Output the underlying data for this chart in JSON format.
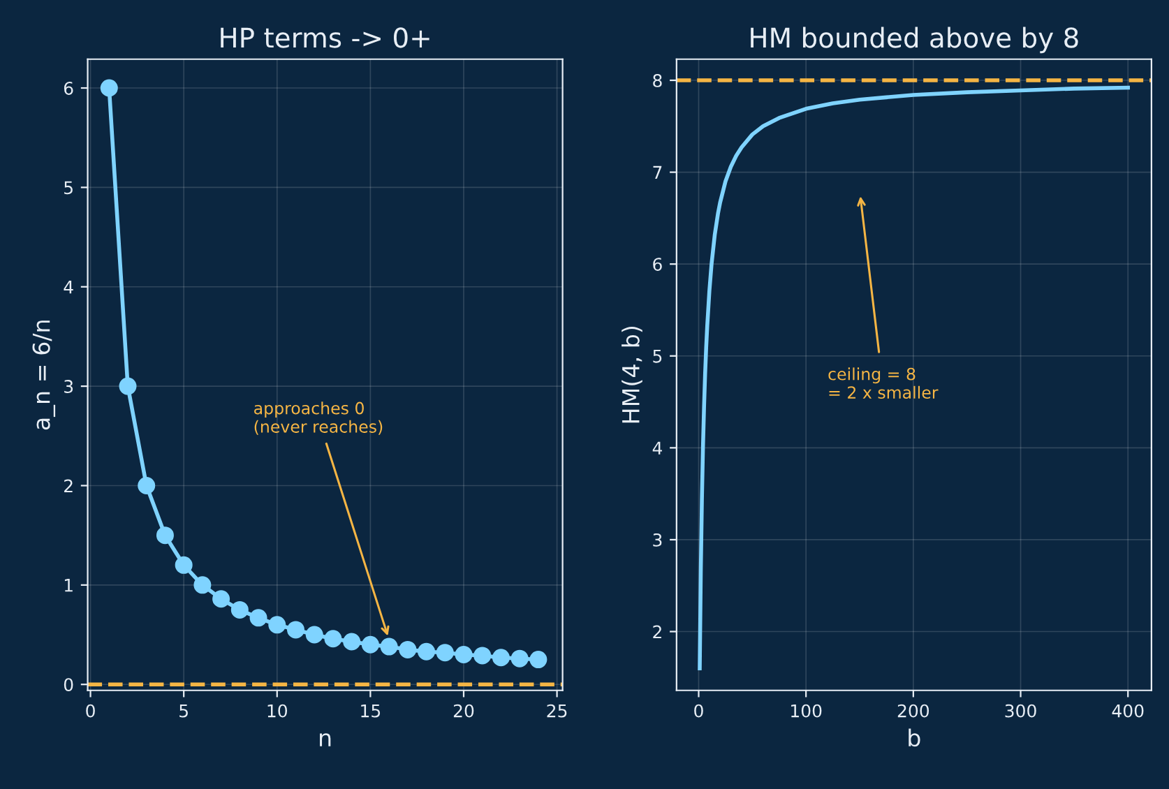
{
  "chart_data": [
    {
      "type": "line",
      "title": "HP terms -> 0+",
      "xlabel": "n",
      "ylabel": "a_n = 6/n",
      "x": [
        1,
        2,
        3,
        4,
        5,
        6,
        7,
        8,
        9,
        10,
        11,
        12,
        13,
        14,
        15,
        16,
        17,
        18,
        19,
        20,
        21,
        22,
        23,
        24
      ],
      "series": [
        {
          "color": "#7fd3ff",
          "values": [
            6,
            3,
            2,
            1.5,
            1.2,
            1,
            0.86,
            0.75,
            0.67,
            0.6,
            0.55,
            0.5,
            0.46,
            0.43,
            0.4,
            0.38,
            0.35,
            0.33,
            0.32,
            0.3,
            0.29,
            0.27,
            0.26,
            0.25
          ]
        }
      ],
      "marker": "circle",
      "line_style": "solid",
      "xlim": [
        -0.15,
        25.3
      ],
      "ylim": [
        -0.06,
        6.29
      ],
      "xticks": [
        0,
        5,
        10,
        15,
        20,
        25
      ],
      "yticks": [
        0,
        1,
        2,
        3,
        4,
        5,
        6
      ],
      "grid": true,
      "ref_lines": [
        {
          "axis": "y",
          "value": 0,
          "color": "#f5b544",
          "line_style": "dashed"
        }
      ],
      "annotations": [
        {
          "text": "approaches 0\n(never reaches)",
          "x": 16,
          "y": 0.45
        }
      ]
    },
    {
      "type": "line",
      "title": "HM bounded above by 8",
      "xlabel": "b",
      "ylabel": "HM(4, b)",
      "x": [
        1,
        2,
        3,
        4,
        5,
        6,
        7,
        8,
        10,
        12,
        15,
        18,
        20,
        25,
        30,
        35,
        40,
        50,
        60,
        75,
        100,
        125,
        150,
        200,
        250,
        300,
        350,
        400
      ],
      "series": [
        {
          "color": "#7fd3ff",
          "values": [
            1.6,
            2.67,
            3.43,
            4,
            4.44,
            4.8,
            5.09,
            5.33,
            5.71,
            6,
            6.32,
            6.55,
            6.67,
            6.9,
            7.06,
            7.18,
            7.27,
            7.41,
            7.5,
            7.59,
            7.69,
            7.75,
            7.79,
            7.84,
            7.87,
            7.89,
            7.91,
            7.92
          ]
        }
      ],
      "line_style": "solid",
      "xlim": [
        -20.6,
        421.9
      ],
      "ylim": [
        1.36,
        8.23
      ],
      "xticks": [
        0,
        100,
        200,
        300,
        400
      ],
      "yticks": [
        2,
        3,
        4,
        5,
        6,
        7,
        8
      ],
      "grid": true,
      "ref_lines": [
        {
          "axis": "y",
          "value": 8,
          "color": "#f5b544",
          "line_style": "dashed"
        }
      ],
      "annotations": [
        "ceiling = 8\n= 2 x smaller"
      ]
    }
  ]
}
